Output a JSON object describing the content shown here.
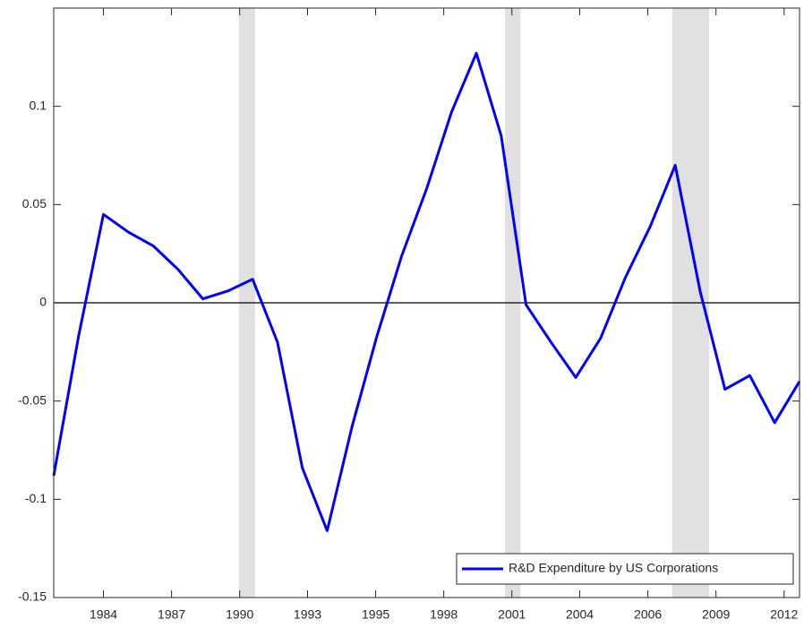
{
  "chart_data": {
    "type": "line",
    "x": [
      1982,
      1983,
      1984,
      1985,
      1986,
      1987,
      1988,
      1989,
      1990,
      1991,
      1992,
      1993,
      1994,
      1995,
      1996,
      1997,
      1998,
      1999,
      2000,
      2001,
      2002,
      2003,
      2004,
      2005,
      2006,
      2007,
      2008,
      2009,
      2010,
      2011,
      2012
    ],
    "series": [
      {
        "name": "R&D Expenditure by US Corporations",
        "color": "#0000ff",
        "values": [
          -0.088,
          -0.017,
          0.045,
          0.036,
          0.029,
          0.017,
          0.002,
          0.006,
          0.012,
          -0.02,
          -0.084,
          -0.116,
          -0.063,
          -0.017,
          0.024,
          0.058,
          0.097,
          0.127,
          0.085,
          -0.001,
          -0.02,
          -0.038,
          -0.018,
          0.013,
          0.039,
          0.07,
          0.006,
          -0.044,
          -0.037,
          -0.061,
          -0.04
        ]
      }
    ],
    "xlim": [
      1982,
      2012
    ],
    "xticks": [
      {
        "value": 1984,
        "label": "1984"
      },
      {
        "value": 1986.74,
        "label": "1987"
      },
      {
        "value": 1989.48,
        "label": "1990"
      },
      {
        "value": 1992.21,
        "label": "1993"
      },
      {
        "value": 1994.95,
        "label": "1995"
      },
      {
        "value": 1997.69,
        "label": "1998"
      },
      {
        "value": 2000.43,
        "label": "2001"
      },
      {
        "value": 2003.16,
        "label": "2004"
      },
      {
        "value": 2005.9,
        "label": "2006"
      },
      {
        "value": 2008.64,
        "label": "2009"
      },
      {
        "value": 2011.38,
        "label": "2012"
      }
    ],
    "ylim": [
      -0.15,
      0.15
    ],
    "yticks": [
      -0.15,
      -0.1,
      -0.05,
      0,
      0.05,
      0.1
    ],
    "shaded_regions": [
      [
        1989.45,
        1990.1
      ],
      [
        2000.15,
        2000.78
      ],
      [
        2006.88,
        2008.36
      ]
    ],
    "shade_color": "#e0e0e0",
    "zero_line": true,
    "legend_position": "lower right"
  }
}
